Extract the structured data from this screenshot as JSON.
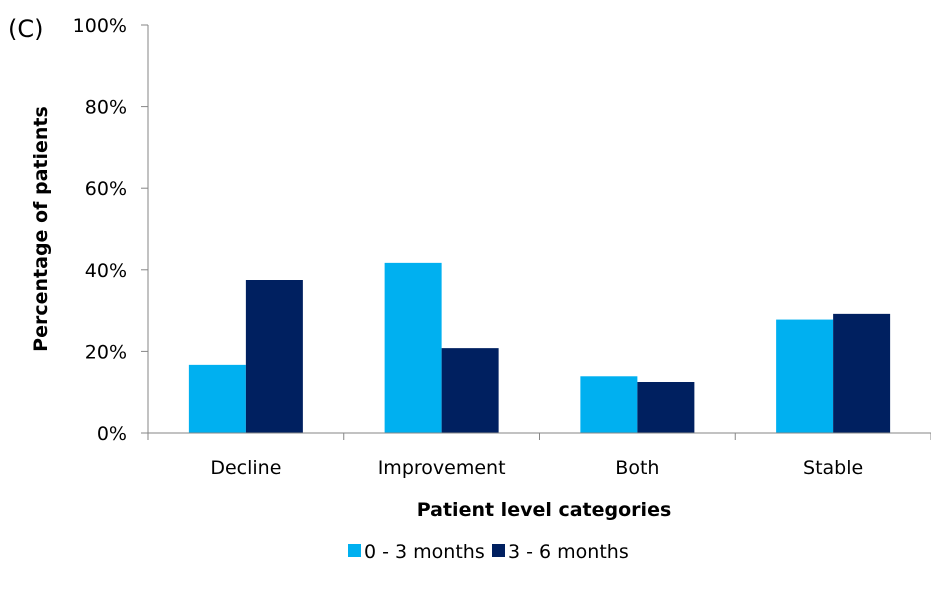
{
  "chart_data": {
    "type": "bar",
    "panel_label": "(C)",
    "xlabel": "Patient level categories",
    "ylabel": "Percentage of patients",
    "ylim": [
      0,
      100
    ],
    "y_ticks": [
      "0%",
      "20%",
      "40%",
      "60%",
      "80%",
      "100%"
    ],
    "grid": false,
    "legend_position": "bottom",
    "categories": [
      "Decline",
      "Improvement",
      "Both",
      "Stable"
    ],
    "series": [
      {
        "name": "0 - 3 months",
        "color": "#00B0F0",
        "values": [
          16.7,
          41.7,
          13.9,
          27.8
        ]
      },
      {
        "name": "3 - 6 months",
        "color": "#002060",
        "values": [
          37.5,
          20.8,
          12.5,
          29.2
        ]
      }
    ]
  }
}
